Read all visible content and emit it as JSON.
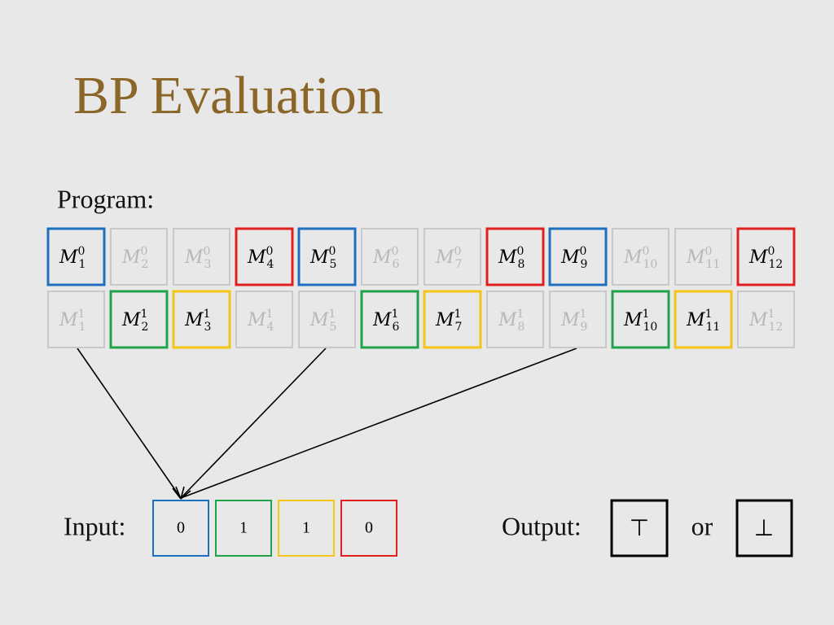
{
  "header": {
    "title": "BP Evaluation"
  },
  "program": {
    "label": "Program:",
    "rows": [
      [
        {
          "base": "M",
          "sup": "0",
          "sub": "1",
          "color": "#1f6fbf",
          "highlighted": true
        },
        {
          "base": "M",
          "sup": "0",
          "sub": "2",
          "color": "#c8c8c8",
          "highlighted": false
        },
        {
          "base": "M",
          "sup": "0",
          "sub": "3",
          "color": "#c8c8c8",
          "highlighted": false
        },
        {
          "base": "M",
          "sup": "0",
          "sub": "4",
          "color": "#e0201e",
          "highlighted": true
        },
        {
          "base": "M",
          "sup": "0",
          "sub": "5",
          "color": "#1f6fbf",
          "highlighted": true
        },
        {
          "base": "M",
          "sup": "0",
          "sub": "6",
          "color": "#c8c8c8",
          "highlighted": false
        },
        {
          "base": "M",
          "sup": "0",
          "sub": "7",
          "color": "#c8c8c8",
          "highlighted": false
        },
        {
          "base": "M",
          "sup": "0",
          "sub": "8",
          "color": "#e0201e",
          "highlighted": true
        },
        {
          "base": "M",
          "sup": "0",
          "sub": "9",
          "color": "#1f6fbf",
          "highlighted": true
        },
        {
          "base": "M",
          "sup": "0",
          "sub": "10",
          "color": "#c8c8c8",
          "highlighted": false
        },
        {
          "base": "M",
          "sup": "0",
          "sub": "11",
          "color": "#c8c8c8",
          "highlighted": false
        },
        {
          "base": "M",
          "sup": "0",
          "sub": "12",
          "color": "#e0201e",
          "highlighted": true
        }
      ],
      [
        {
          "base": "M",
          "sup": "1",
          "sub": "1",
          "color": "#c8c8c8",
          "highlighted": false
        },
        {
          "base": "M",
          "sup": "1",
          "sub": "2",
          "color": "#1fa34a",
          "highlighted": true
        },
        {
          "base": "M",
          "sup": "1",
          "sub": "3",
          "color": "#f5c518",
          "highlighted": true
        },
        {
          "base": "M",
          "sup": "1",
          "sub": "4",
          "color": "#c8c8c8",
          "highlighted": false
        },
        {
          "base": "M",
          "sup": "1",
          "sub": "5",
          "color": "#c8c8c8",
          "highlighted": false
        },
        {
          "base": "M",
          "sup": "1",
          "sub": "6",
          "color": "#1fa34a",
          "highlighted": true
        },
        {
          "base": "M",
          "sup": "1",
          "sub": "7",
          "color": "#f5c518",
          "highlighted": true
        },
        {
          "base": "M",
          "sup": "1",
          "sub": "8",
          "color": "#c8c8c8",
          "highlighted": false
        },
        {
          "base": "M",
          "sup": "1",
          "sub": "9",
          "color": "#c8c8c8",
          "highlighted": false
        },
        {
          "base": "M",
          "sup": "1",
          "sub": "10",
          "color": "#1fa34a",
          "highlighted": true
        },
        {
          "base": "M",
          "sup": "1",
          "sub": "11",
          "color": "#f5c518",
          "highlighted": true
        },
        {
          "base": "M",
          "sup": "1",
          "sub": "12",
          "color": "#c8c8c8",
          "highlighted": false
        }
      ]
    ]
  },
  "input": {
    "label": "Input:",
    "bits": [
      {
        "value": 0,
        "color": "#1f6fbf"
      },
      {
        "value": 1,
        "color": "#1fa34a"
      },
      {
        "value": 1,
        "color": "#f5c518"
      },
      {
        "value": 0,
        "color": "#e0201e"
      }
    ]
  },
  "output": {
    "label": "Output:",
    "true_symbol": "⊤",
    "connector": "or",
    "false_symbol": "⊥"
  }
}
